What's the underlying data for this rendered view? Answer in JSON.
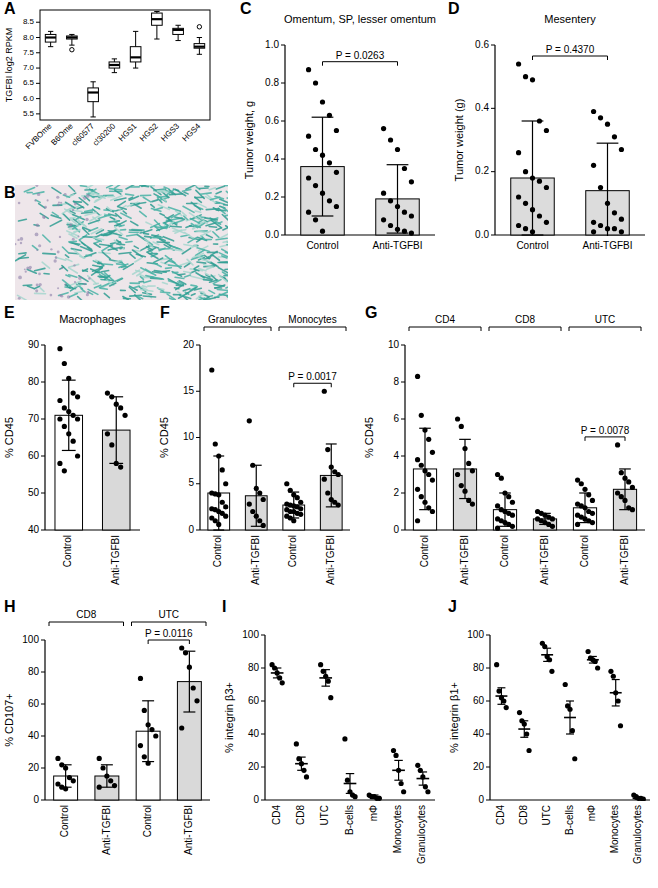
{
  "image": {
    "panel": "B"
  },
  "chart_data": [
    {
      "panel": "A",
      "type": "box",
      "ylabel": "TGFBI log2 RPKM",
      "categories": [
        "FVBOme",
        "B6Ome",
        "cl60577",
        "cl30200",
        "HGS1",
        "HGS2",
        "HGS3",
        "HGS4"
      ],
      "boxes": [
        {
          "min": 7.7,
          "q1": 7.85,
          "median": 8.0,
          "q3": 8.1,
          "max": 8.2,
          "outliers": []
        },
        {
          "min": 7.75,
          "q1": 7.95,
          "median": 8.0,
          "q3": 8.05,
          "max": 8.1,
          "outliers": [
            7.6
          ]
        },
        {
          "min": 5.4,
          "q1": 5.9,
          "median": 6.2,
          "q3": 6.35,
          "max": 6.55,
          "outliers": []
        },
        {
          "min": 6.85,
          "q1": 7.0,
          "median": 7.1,
          "q3": 7.2,
          "max": 7.3,
          "outliers": []
        },
        {
          "min": 7.0,
          "q1": 7.2,
          "median": 7.35,
          "q3": 7.7,
          "max": 8.2,
          "outliers": []
        },
        {
          "min": 7.95,
          "q1": 8.4,
          "median": 8.6,
          "q3": 8.8,
          "max": 8.85,
          "outliers": []
        },
        {
          "min": 7.9,
          "q1": 8.1,
          "median": 8.25,
          "q3": 8.3,
          "max": 8.4,
          "outliers": []
        },
        {
          "min": 7.45,
          "q1": 7.65,
          "median": 7.7,
          "q3": 7.8,
          "max": 8.0,
          "outliers": [
            8.35
          ]
        }
      ],
      "ylim": [
        5.3,
        8.9
      ],
      "yticks": [
        5.5,
        {
          "value": 6,
          "label": "6.0"
        },
        6.5,
        {
          "value": 7,
          "label": "7.0"
        },
        7.5,
        {
          "value": 8,
          "label": "8.0"
        },
        8.5
      ]
    },
    {
      "panel": "C",
      "type": "bar",
      "title": "Omentum, SP, lesser omentum",
      "ylabel": "Tumor weight, g",
      "categories": [
        "Control",
        "Anti-TGFBI"
      ],
      "values": [
        0.36,
        0.19
      ],
      "errors": [
        0.26,
        0.18
      ],
      "points": [
        [
          0.87,
          0.8,
          0.7,
          0.63,
          0.55,
          0.52,
          0.45,
          0.42,
          0.38,
          0.33,
          0.3,
          0.26,
          0.22,
          0.18,
          0.15,
          0.12,
          0.08,
          0.02
        ],
        [
          0.56,
          0.5,
          0.45,
          0.35,
          0.28,
          0.22,
          0.18,
          0.15,
          0.12,
          0.1,
          0.08,
          0.05,
          0.03,
          0.02,
          0.01
        ]
      ],
      "colors": [
        "#dcdcdc",
        "#dcdcdc"
      ],
      "color": "#000000",
      "ylim": [
        0,
        1
      ],
      "yticks": [
        {
          "value": 0,
          "label": "0.0"
        },
        0.2,
        0.4,
        0.6,
        0.8,
        {
          "value": 1,
          "label": "1.0"
        }
      ],
      "annotations": [
        {
          "text": "P = 0.0263",
          "between": [
            0,
            1
          ]
        }
      ]
    },
    {
      "panel": "D",
      "type": "bar",
      "title": "Mesentery",
      "ylabel": "Tumor weight (g)",
      "categories": [
        "Control",
        "Anti-TGFBI"
      ],
      "values": [
        0.18,
        0.14
      ],
      "errors": [
        0.18,
        0.15
      ],
      "points": [
        [
          0.54,
          0.5,
          0.49,
          0.36,
          0.33,
          0.26,
          0.2,
          0.18,
          0.17,
          0.15,
          0.12,
          0.1,
          0.08,
          0.06,
          0.04,
          0.03,
          0.02,
          0.01
        ],
        [
          0.39,
          0.37,
          0.35,
          0.31,
          0.27,
          0.22,
          0.15,
          0.1,
          0.07,
          0.05,
          0.04,
          0.03,
          0.02,
          0.02,
          0.01,
          0.01
        ]
      ],
      "colors": [
        "#dcdcdc",
        "#dcdcdc"
      ],
      "color": "#000000",
      "ylim": [
        0,
        0.6
      ],
      "yticks": [
        {
          "value": 0,
          "label": "0.0"
        },
        0.2,
        0.4,
        0.6
      ],
      "annotations": [
        {
          "text": "P = 0.4370",
          "between": [
            0,
            1
          ]
        }
      ]
    },
    {
      "panel": "E",
      "type": "bar",
      "title": "Macrophages",
      "ylabel": "% CD45",
      "categories": [
        "Control",
        "Anti-TGFBI"
      ],
      "values": [
        71,
        67
      ],
      "errors": [
        9.5,
        9
      ],
      "points": [
        [
          89,
          85,
          81,
          77,
          76,
          75,
          73,
          72,
          71,
          70,
          70,
          68,
          66,
          64,
          60,
          58,
          56
        ],
        [
          77,
          76,
          74,
          73,
          71,
          66,
          63,
          58,
          57
        ]
      ],
      "colors": [
        "#ffffff",
        "#d9d9d9"
      ],
      "color": "#000000",
      "ylim": [
        40,
        90
      ],
      "yticks": [
        40,
        50,
        60,
        70,
        80,
        90
      ]
    },
    {
      "panel": "F",
      "type": "bar",
      "ylabel": "% CD45",
      "categories": [
        "Control",
        "Anti-TGFBI",
        "Control",
        "Anti-TGFBI"
      ],
      "groups": [
        {
          "label": "Granulocytes",
          "size": 2
        },
        {
          "label": "Monocytes",
          "size": 2
        }
      ],
      "values": [
        4.0,
        3.7,
        2.7,
        5.9
      ],
      "errors": [
        4.0,
        3.3,
        1.4,
        3.4
      ],
      "points": [
        [
          17.3,
          9.3,
          8.0,
          6.5,
          5.0,
          4.0,
          3.9,
          3.8,
          3.0,
          2.5,
          2.3,
          2.2,
          2.0,
          1.8,
          1.5,
          1.3,
          1.0,
          0.6
        ],
        [
          11.8,
          7.0,
          4.5,
          4.0,
          3.3,
          2.8,
          2.0,
          1.5,
          1.0,
          0.5
        ],
        [
          5.0,
          4.3,
          3.8,
          3.5,
          3.0,
          2.8,
          2.7,
          2.6,
          2.5,
          2.3,
          2.2,
          2.0,
          2.0,
          1.8,
          1.7,
          1.5,
          1.3,
          1.0
        ],
        [
          15.0,
          8.7,
          6.8,
          6.3,
          6.0,
          5.5,
          4.0,
          3.3,
          3.0,
          2.7
        ]
      ],
      "colors": [
        "#ffffff",
        "#d9d9d9",
        "#ffffff",
        "#d9d9d9"
      ],
      "color": "#000000",
      "ylim": [
        0,
        20
      ],
      "yticks": [
        0,
        5,
        10,
        15,
        20
      ],
      "annotations": [
        {
          "text": "P = 0.0017",
          "between": [
            2,
            3
          ]
        }
      ]
    },
    {
      "panel": "G",
      "type": "bar",
      "ylabel": "% CD45",
      "categories": [
        "Control",
        "Anti-TGFBI",
        "Control",
        "Anti-TGFBI",
        "Control",
        "Anti-TGFBI"
      ],
      "groups": [
        {
          "label": "CD4",
          "size": 2
        },
        {
          "label": "CD8",
          "size": 2
        },
        {
          "label": "UTC",
          "size": 2
        }
      ],
      "values": [
        3.3,
        3.3,
        1.1,
        0.6,
        1.2,
        2.2
      ],
      "errors": [
        2.2,
        1.6,
        0.9,
        0.3,
        0.8,
        1.1
      ],
      "points": [
        [
          8.3,
          6.2,
          5.4,
          4.9,
          4.2,
          3.8,
          3.5,
          3.2,
          3.0,
          2.7,
          2.2,
          1.8,
          1.5,
          1.2,
          1.0,
          0.5
        ],
        [
          6.0,
          5.6,
          4.4,
          3.6,
          3.2,
          3.0,
          2.4,
          2.1,
          1.6,
          1.4
        ],
        [
          3.0,
          2.8,
          2.0,
          1.8,
          1.5,
          1.3,
          1.1,
          1.0,
          0.9,
          0.8,
          0.6,
          0.5,
          0.4,
          0.3,
          0.2,
          0.1
        ],
        [
          1.0,
          0.9,
          0.8,
          0.7,
          0.6,
          0.6,
          0.5,
          0.4,
          0.3,
          0.2
        ],
        [
          2.7,
          2.5,
          2.2,
          1.9,
          1.6,
          1.4,
          1.3,
          1.2,
          1.0,
          0.9,
          0.8,
          0.7,
          0.6,
          0.5,
          0.4,
          0.3
        ],
        [
          4.6,
          3.1,
          2.8,
          2.6,
          2.3,
          2.0,
          1.8,
          1.6,
          1.2,
          1.1
        ]
      ],
      "colors": [
        "#ffffff",
        "#d9d9d9",
        "#ffffff",
        "#d9d9d9",
        "#ffffff",
        "#d9d9d9"
      ],
      "color": "#000000",
      "ylim": [
        0,
        10
      ],
      "yticks": [
        0,
        2,
        4,
        6,
        8,
        10
      ],
      "annotations": [
        {
          "text": "P = 0.0078",
          "between": [
            4,
            5
          ]
        }
      ]
    },
    {
      "panel": "H",
      "type": "bar",
      "ylabel": "% CD107+",
      "categories": [
        "Control",
        "Anti-TGFBI",
        "Control",
        "Anti-TGFBI"
      ],
      "groups": [
        {
          "label": "CD8",
          "size": 2
        },
        {
          "label": "UTC",
          "size": 2
        }
      ],
      "values": [
        15,
        15,
        43,
        74
      ],
      "errors": [
        7,
        7,
        19,
        19
      ],
      "points": [
        [
          26,
          22,
          20,
          14,
          12,
          10,
          8,
          7
        ],
        [
          26,
          20,
          15,
          12,
          9,
          8
        ],
        [
          76,
          56,
          47,
          44,
          40,
          34,
          27,
          23
        ],
        [
          95,
          92,
          83,
          70,
          62,
          45
        ]
      ],
      "colors": [
        "#ffffff",
        "#d9d9d9",
        "#ffffff",
        "#d9d9d9"
      ],
      "color": "#000000",
      "ylim": [
        0,
        100
      ],
      "yticks": [
        0,
        20,
        40,
        60,
        80,
        100
      ],
      "annotations": [
        {
          "text": "P = 0.0116",
          "between": [
            2,
            3
          ]
        }
      ]
    },
    {
      "panel": "I",
      "type": "scatter",
      "ylabel": "% integrin β3+",
      "categories": [
        "CD4",
        "CD8",
        "UTC",
        "B-cells",
        "mΦ",
        "Monocytes",
        "Granulocytes"
      ],
      "values": [
        77,
        22,
        74,
        10,
        2,
        18,
        13
      ],
      "errors": [
        3,
        4,
        5,
        6,
        1,
        6,
        4
      ],
      "points": [
        [
          82,
          80,
          77,
          74,
          71
        ],
        [
          34,
          25,
          22,
          18,
          14
        ],
        [
          82,
          78,
          75,
          72,
          62
        ],
        [
          37,
          12,
          5,
          3,
          2
        ],
        [
          3,
          2,
          2,
          1,
          1
        ],
        [
          30,
          27,
          18,
          10,
          5
        ],
        [
          21,
          18,
          14,
          8,
          5
        ]
      ],
      "color": "#000000",
      "ylim": [
        0,
        100
      ],
      "yticks": [
        0,
        20,
        40,
        60,
        80,
        100
      ]
    },
    {
      "panel": "J",
      "type": "scatter",
      "ylabel": "% integrin β1+",
      "categories": [
        "CD4",
        "CD8",
        "UTC",
        "B-cells",
        "mΦ",
        "Monocytes",
        "Granulocytes"
      ],
      "values": [
        63,
        43,
        88,
        50,
        85,
        65,
        1
      ],
      "errors": [
        5,
        5,
        4,
        10,
        2,
        8,
        0.5
      ],
      "points": [
        [
          82,
          66,
          62,
          60,
          56
        ],
        [
          53,
          48,
          46,
          40,
          30
        ],
        [
          95,
          93,
          87,
          85,
          78
        ],
        [
          70,
          57,
          55,
          42,
          25
        ],
        [
          90,
          86,
          85,
          84,
          80
        ],
        [
          78,
          75,
          65,
          60,
          45
        ],
        [
          3,
          2,
          1,
          1,
          0.5
        ]
      ],
      "color": "#000000",
      "ylim": [
        0,
        100
      ],
      "yticks": [
        0,
        20,
        40,
        60,
        80,
        100
      ]
    }
  ]
}
